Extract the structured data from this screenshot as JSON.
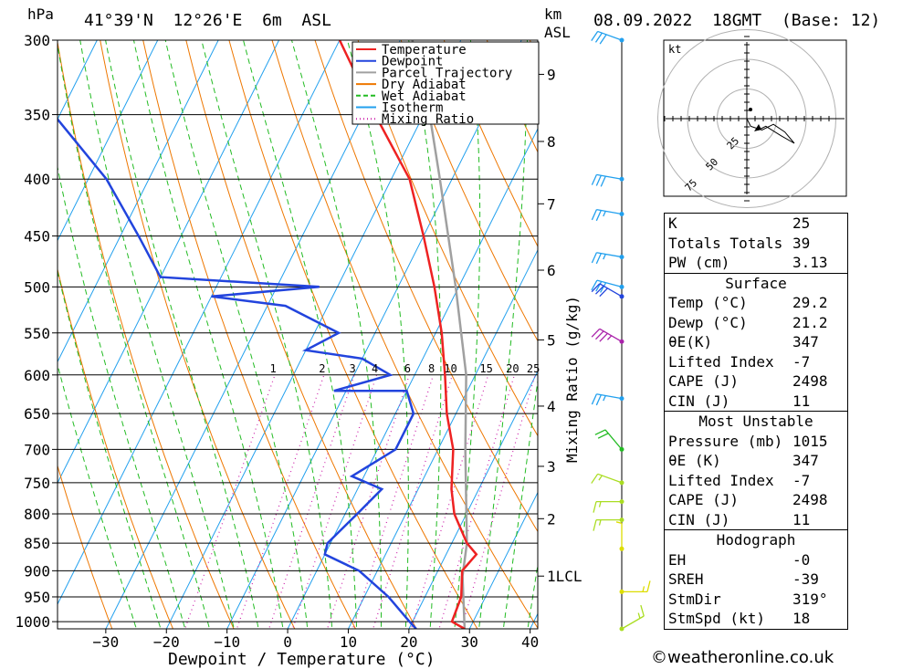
{
  "header": {
    "hpa_label": "hPa",
    "location": "41°39'N  12°26'E  6m  ASL",
    "km_label": "km",
    "asl_label": "ASL",
    "datetime": "08.09.2022  18GMT  (Base: 12)"
  },
  "chart_data": {
    "type": "skew-t",
    "xlabel": "Dewpoint / Temperature (°C)",
    "right_label": "Mixing Ratio (g/kg)",
    "pressure_levels": [
      300,
      350,
      400,
      450,
      500,
      550,
      600,
      650,
      700,
      750,
      800,
      850,
      900,
      950,
      1000
    ],
    "temperature_ticks": [
      -30,
      -20,
      -10,
      0,
      10,
      20,
      30,
      40
    ],
    "height_km_labels": [
      {
        "label": "1LCL",
        "p": 910
      },
      {
        "label": "2",
        "p": 808
      },
      {
        "label": "3",
        "p": 725
      },
      {
        "label": "4",
        "p": 640
      },
      {
        "label": "5",
        "p": 558
      },
      {
        "label": "6",
        "p": 483
      },
      {
        "label": "7",
        "p": 421
      },
      {
        "label": "8",
        "p": 370
      },
      {
        "label": "9",
        "p": 322
      }
    ],
    "mixing_ratio_labels": [
      "1",
      "2",
      "3",
      "4",
      "6",
      "8",
      "10",
      "15",
      "20",
      "25"
    ],
    "mixing_ratio_values": [
      1,
      2,
      3,
      4,
      6,
      8,
      10,
      15,
      20,
      25
    ],
    "legend": [
      {
        "name": "Temperature",
        "color": "#ee2222",
        "style": "solid"
      },
      {
        "name": "Dewpoint",
        "color": "#2244dd",
        "style": "solid"
      },
      {
        "name": "Parcel Trajectory",
        "color": "#a0a0a0",
        "style": "solid"
      },
      {
        "name": "Dry Adiabat",
        "color": "#ee7700",
        "style": "solid"
      },
      {
        "name": "Wet Adiabat",
        "color": "#22bb22",
        "style": "dashed"
      },
      {
        "name": "Isotherm",
        "color": "#22a0ee",
        "style": "solid"
      },
      {
        "name": "Mixing Ratio",
        "color": "#cc22aa",
        "style": "dotted"
      }
    ],
    "series": {
      "temperature": [
        [
          1015,
          29.2
        ],
        [
          1000,
          26.5
        ],
        [
          950,
          26
        ],
        [
          900,
          24
        ],
        [
          870,
          25
        ],
        [
          850,
          22.5
        ],
        [
          800,
          18
        ],
        [
          760,
          15.5
        ],
        [
          700,
          12.5
        ],
        [
          650,
          8.5
        ],
        [
          600,
          5
        ],
        [
          550,
          1
        ],
        [
          500,
          -4
        ],
        [
          450,
          -10
        ],
        [
          400,
          -17
        ],
        [
          350,
          -28
        ],
        [
          300,
          -40
        ]
      ],
      "dewpoint": [
        [
          1015,
          21.2
        ],
        [
          1000,
          19.5
        ],
        [
          950,
          14
        ],
        [
          900,
          7
        ],
        [
          870,
          0
        ],
        [
          850,
          -0.5
        ],
        [
          800,
          2
        ],
        [
          760,
          4
        ],
        [
          740,
          -2
        ],
        [
          700,
          3
        ],
        [
          650,
          3
        ],
        [
          620,
          0
        ],
        [
          620,
          -12
        ],
        [
          600,
          -4
        ],
        [
          580,
          -10
        ],
        [
          570,
          -20
        ],
        [
          550,
          -16
        ],
        [
          520,
          -27
        ],
        [
          510,
          -40
        ],
        [
          500,
          -23
        ],
        [
          490,
          -50
        ],
        [
          450,
          -57
        ],
        [
          400,
          -67
        ],
        [
          350,
          -81
        ],
        [
          300,
          -97
        ]
      ],
      "parcel": [
        [
          1015,
          29.2
        ],
        [
          910,
          24.5
        ],
        [
          850,
          22.5
        ],
        [
          800,
          20
        ],
        [
          700,
          14.5
        ],
        [
          600,
          8.5
        ],
        [
          500,
          -0.5
        ],
        [
          400,
          -12
        ],
        [
          350,
          -19
        ],
        [
          300,
          -28
        ]
      ]
    },
    "winds": [
      {
        "p": 300,
        "speed": 30,
        "dir": 290,
        "color": "#22a0ee"
      },
      {
        "p": 400,
        "speed": 30,
        "dir": 280,
        "color": "#22a0ee"
      },
      {
        "p": 430,
        "speed": 25,
        "dir": 280,
        "color": "#22a0ee"
      },
      {
        "p": 470,
        "speed": 25,
        "dir": 280,
        "color": "#22a0ee"
      },
      {
        "p": 500,
        "speed": 30,
        "dir": 285,
        "color": "#22a0ee"
      },
      {
        "p": 510,
        "speed": 30,
        "dir": 300,
        "color": "#2244dd"
      },
      {
        "p": 560,
        "speed": 35,
        "dir": 300,
        "color": "#aa22aa"
      },
      {
        "p": 630,
        "speed": 25,
        "dir": 280,
        "color": "#22a0ee"
      },
      {
        "p": 700,
        "speed": 20,
        "dir": 320,
        "color": "#22bb22"
      },
      {
        "p": 750,
        "speed": 15,
        "dir": 290,
        "color": "#aadd22"
      },
      {
        "p": 780,
        "speed": 15,
        "dir": 270,
        "color": "#aadd22"
      },
      {
        "p": 810,
        "speed": 15,
        "dir": 270,
        "color": "#aadd22"
      },
      {
        "p": 860,
        "speed": 5,
        "dir": 0,
        "color": "#dddd00"
      },
      {
        "p": 940,
        "speed": 15,
        "dir": 90,
        "color": "#dddd00"
      },
      {
        "p": 1015,
        "speed": 15,
        "dir": 60,
        "color": "#aadd22"
      }
    ],
    "hodograph": {
      "unit_label": "kt",
      "ring_labels": [
        "25",
        "50",
        "75"
      ],
      "points": [
        [
          0,
          0
        ],
        [
          2,
          -4
        ],
        [
          8,
          -6
        ],
        [
          14,
          -3
        ],
        [
          20,
          -7
        ],
        [
          25,
          -13
        ],
        [
          18,
          -9
        ],
        [
          10,
          -4
        ],
        [
          6,
          -6
        ]
      ]
    }
  },
  "info": {
    "k_label": "K",
    "k": "25",
    "tt_label": "Totals Totals",
    "tt": "39",
    "pw_label": "PW (cm)",
    "pw": "3.13",
    "surface_title": "Surface",
    "s_temp_label": "Temp (°C)",
    "s_temp": "29.2",
    "s_dewp_label": "Dewp (°C)",
    "s_dewp": "21.2",
    "s_thetae_label": "θE(K)",
    "s_thetae": "347",
    "s_li_label": "Lifted Index",
    "s_li": "-7",
    "s_cape_label": "CAPE (J)",
    "s_cape": "2498",
    "s_cin_label": "CIN (J)",
    "s_cin": "11",
    "mu_title": "Most Unstable",
    "mu_p_label": "Pressure (mb)",
    "mu_p": "1015",
    "mu_thetae_label": "θE (K)",
    "mu_thetae": "347",
    "mu_li_label": "Lifted Index",
    "mu_li": "-7",
    "mu_cape_label": "CAPE (J)",
    "mu_cape": "2498",
    "mu_cin_label": "CIN (J)",
    "mu_cin": "11",
    "hodo_title": "Hodograph",
    "eh_label": "EH",
    "eh": "-0",
    "sreh_label": "SREH",
    "sreh": "-39",
    "stmdir_label": "StmDir",
    "stmdir": "319°",
    "stmspd_label": "StmSpd (kt)",
    "stmspd": "18"
  },
  "footer": {
    "credit": "©weatheronline.co.uk"
  }
}
